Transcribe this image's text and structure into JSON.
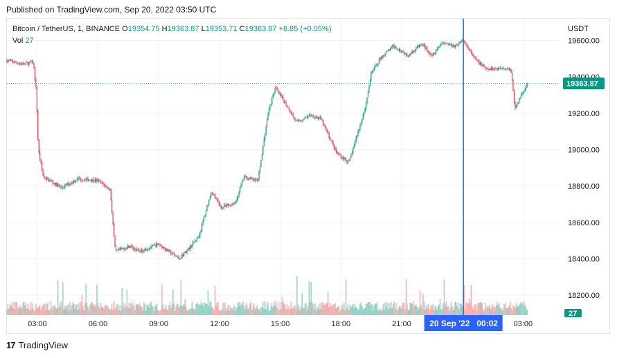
{
  "published": "Published on TradingView.com, Sep 20, 2022 03:50 UTC",
  "legend": {
    "symbol": "Bitcoin / TetherUS, 1, BINANCE",
    "o_label": "O",
    "o": "19354.75",
    "h_label": "H",
    "h": "19363.87",
    "l_label": "L",
    "l": "19353.71",
    "c_label": "C",
    "c": "19363.87",
    "change": "+8.85 (+0.05%)",
    "vol_label": "Vol",
    "vol": "27"
  },
  "colors": {
    "up": "#089981",
    "down": "#f23645",
    "crosshair": "#2962ff",
    "price_label_bg": "#089981",
    "grid": "#f0f3fa",
    "vol_up": "#8fcfc3",
    "vol_down": "#f7a9a7"
  },
  "footer": {
    "logo_text": "TradingView",
    "logo_icon": "tradingview-logo-icon"
  },
  "chart_data": {
    "type": "candlestick",
    "currency": "USDT",
    "y_ticks": [
      18200,
      18400,
      18600,
      18800,
      19000,
      19200,
      19400,
      19600
    ],
    "y_tick_labels": [
      "18200.00",
      "18400.00",
      "18600.00",
      "18800.00",
      "19000.00",
      "19200.00",
      "19400.00",
      "19600.00"
    ],
    "x_ticks": [
      "03:00",
      "06:00",
      "09:00",
      "12:00",
      "15:00",
      "18:00",
      "21:00",
      "03:00"
    ],
    "x_tick_hours": [
      3,
      6,
      9,
      12,
      15,
      18,
      21,
      27
    ],
    "x_range_hours": [
      1.5,
      28.8
    ],
    "ylim": [
      18090,
      19720
    ],
    "last_price": 19363.87,
    "last_price_label": "19363.87",
    "last_volume_label": "27",
    "crosshair": {
      "hour": 24.05,
      "label": "20 Sep '22   00:02"
    },
    "price_path": [
      [
        1.5,
        19490
      ],
      [
        2.3,
        19470
      ],
      [
        2.8,
        19480
      ],
      [
        2.95,
        19320
      ],
      [
        3.05,
        19000
      ],
      [
        3.3,
        18850
      ],
      [
        4.2,
        18790
      ],
      [
        5.0,
        18840
      ],
      [
        6.0,
        18830
      ],
      [
        6.6,
        18780
      ],
      [
        6.85,
        18440
      ],
      [
        7.6,
        18470
      ],
      [
        8.0,
        18440
      ],
      [
        9.0,
        18480
      ],
      [
        10.0,
        18400
      ],
      [
        10.6,
        18470
      ],
      [
        11.0,
        18530
      ],
      [
        11.6,
        18770
      ],
      [
        12.1,
        18680
      ],
      [
        12.8,
        18710
      ],
      [
        13.2,
        18850
      ],
      [
        13.9,
        18830
      ],
      [
        14.4,
        19200
      ],
      [
        14.75,
        19340
      ],
      [
        15.4,
        19230
      ],
      [
        15.8,
        19150
      ],
      [
        16.5,
        19190
      ],
      [
        17.0,
        19170
      ],
      [
        17.8,
        18980
      ],
      [
        18.4,
        18930
      ],
      [
        18.8,
        19080
      ],
      [
        19.2,
        19230
      ],
      [
        19.5,
        19420
      ],
      [
        20.0,
        19510
      ],
      [
        20.6,
        19570
      ],
      [
        21.3,
        19520
      ],
      [
        22.0,
        19580
      ],
      [
        22.5,
        19520
      ],
      [
        23.0,
        19590
      ],
      [
        23.6,
        19570
      ],
      [
        24.05,
        19600
      ],
      [
        24.6,
        19500
      ],
      [
        25.2,
        19440
      ],
      [
        26.1,
        19450
      ],
      [
        26.4,
        19440
      ],
      [
        26.6,
        19220
      ],
      [
        26.9,
        19300
      ],
      [
        27.2,
        19360
      ]
    ]
  }
}
